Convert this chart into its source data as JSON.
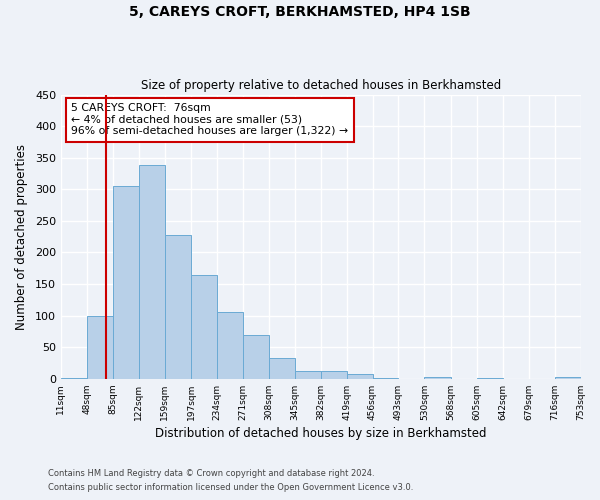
{
  "title": "5, CAREYS CROFT, BERKHAMSTED, HP4 1SB",
  "subtitle": "Size of property relative to detached houses in Berkhamsted",
  "xlabel": "Distribution of detached houses by size in Berkhamsted",
  "ylabel": "Number of detached properties",
  "bar_edges": [
    11,
    48,
    85,
    122,
    159,
    197,
    234,
    271,
    308,
    345,
    382,
    419,
    456,
    493,
    530,
    568,
    605,
    642,
    679,
    716,
    753
  ],
  "bar_heights": [
    2,
    99,
    305,
    338,
    228,
    165,
    106,
    70,
    33,
    12,
    12,
    7,
    1,
    0,
    3,
    0,
    1,
    0,
    0,
    3
  ],
  "bar_color": "#b8d0e8",
  "bar_edge_color": "#6aaad4",
  "property_line_x": 76,
  "property_line_color": "#cc0000",
  "annotation_text": "5 CAREYS CROFT:  76sqm\n← 4% of detached houses are smaller (53)\n96% of semi-detached houses are larger (1,322) →",
  "annotation_box_color": "#cc0000",
  "ylim": [
    0,
    450
  ],
  "yticks": [
    0,
    50,
    100,
    150,
    200,
    250,
    300,
    350,
    400,
    450
  ],
  "tick_labels": [
    "11sqm",
    "48sqm",
    "85sqm",
    "122sqm",
    "159sqm",
    "197sqm",
    "234sqm",
    "271sqm",
    "308sqm",
    "345sqm",
    "382sqm",
    "419sqm",
    "456sqm",
    "493sqm",
    "530sqm",
    "568sqm",
    "605sqm",
    "642sqm",
    "679sqm",
    "716sqm",
    "753sqm"
  ],
  "footnote1": "Contains HM Land Registry data © Crown copyright and database right 2024.",
  "footnote2": "Contains public sector information licensed under the Open Government Licence v3.0.",
  "bg_color": "#eef2f8",
  "plot_bg_color": "#eef2f8",
  "grid_color": "#ffffff"
}
